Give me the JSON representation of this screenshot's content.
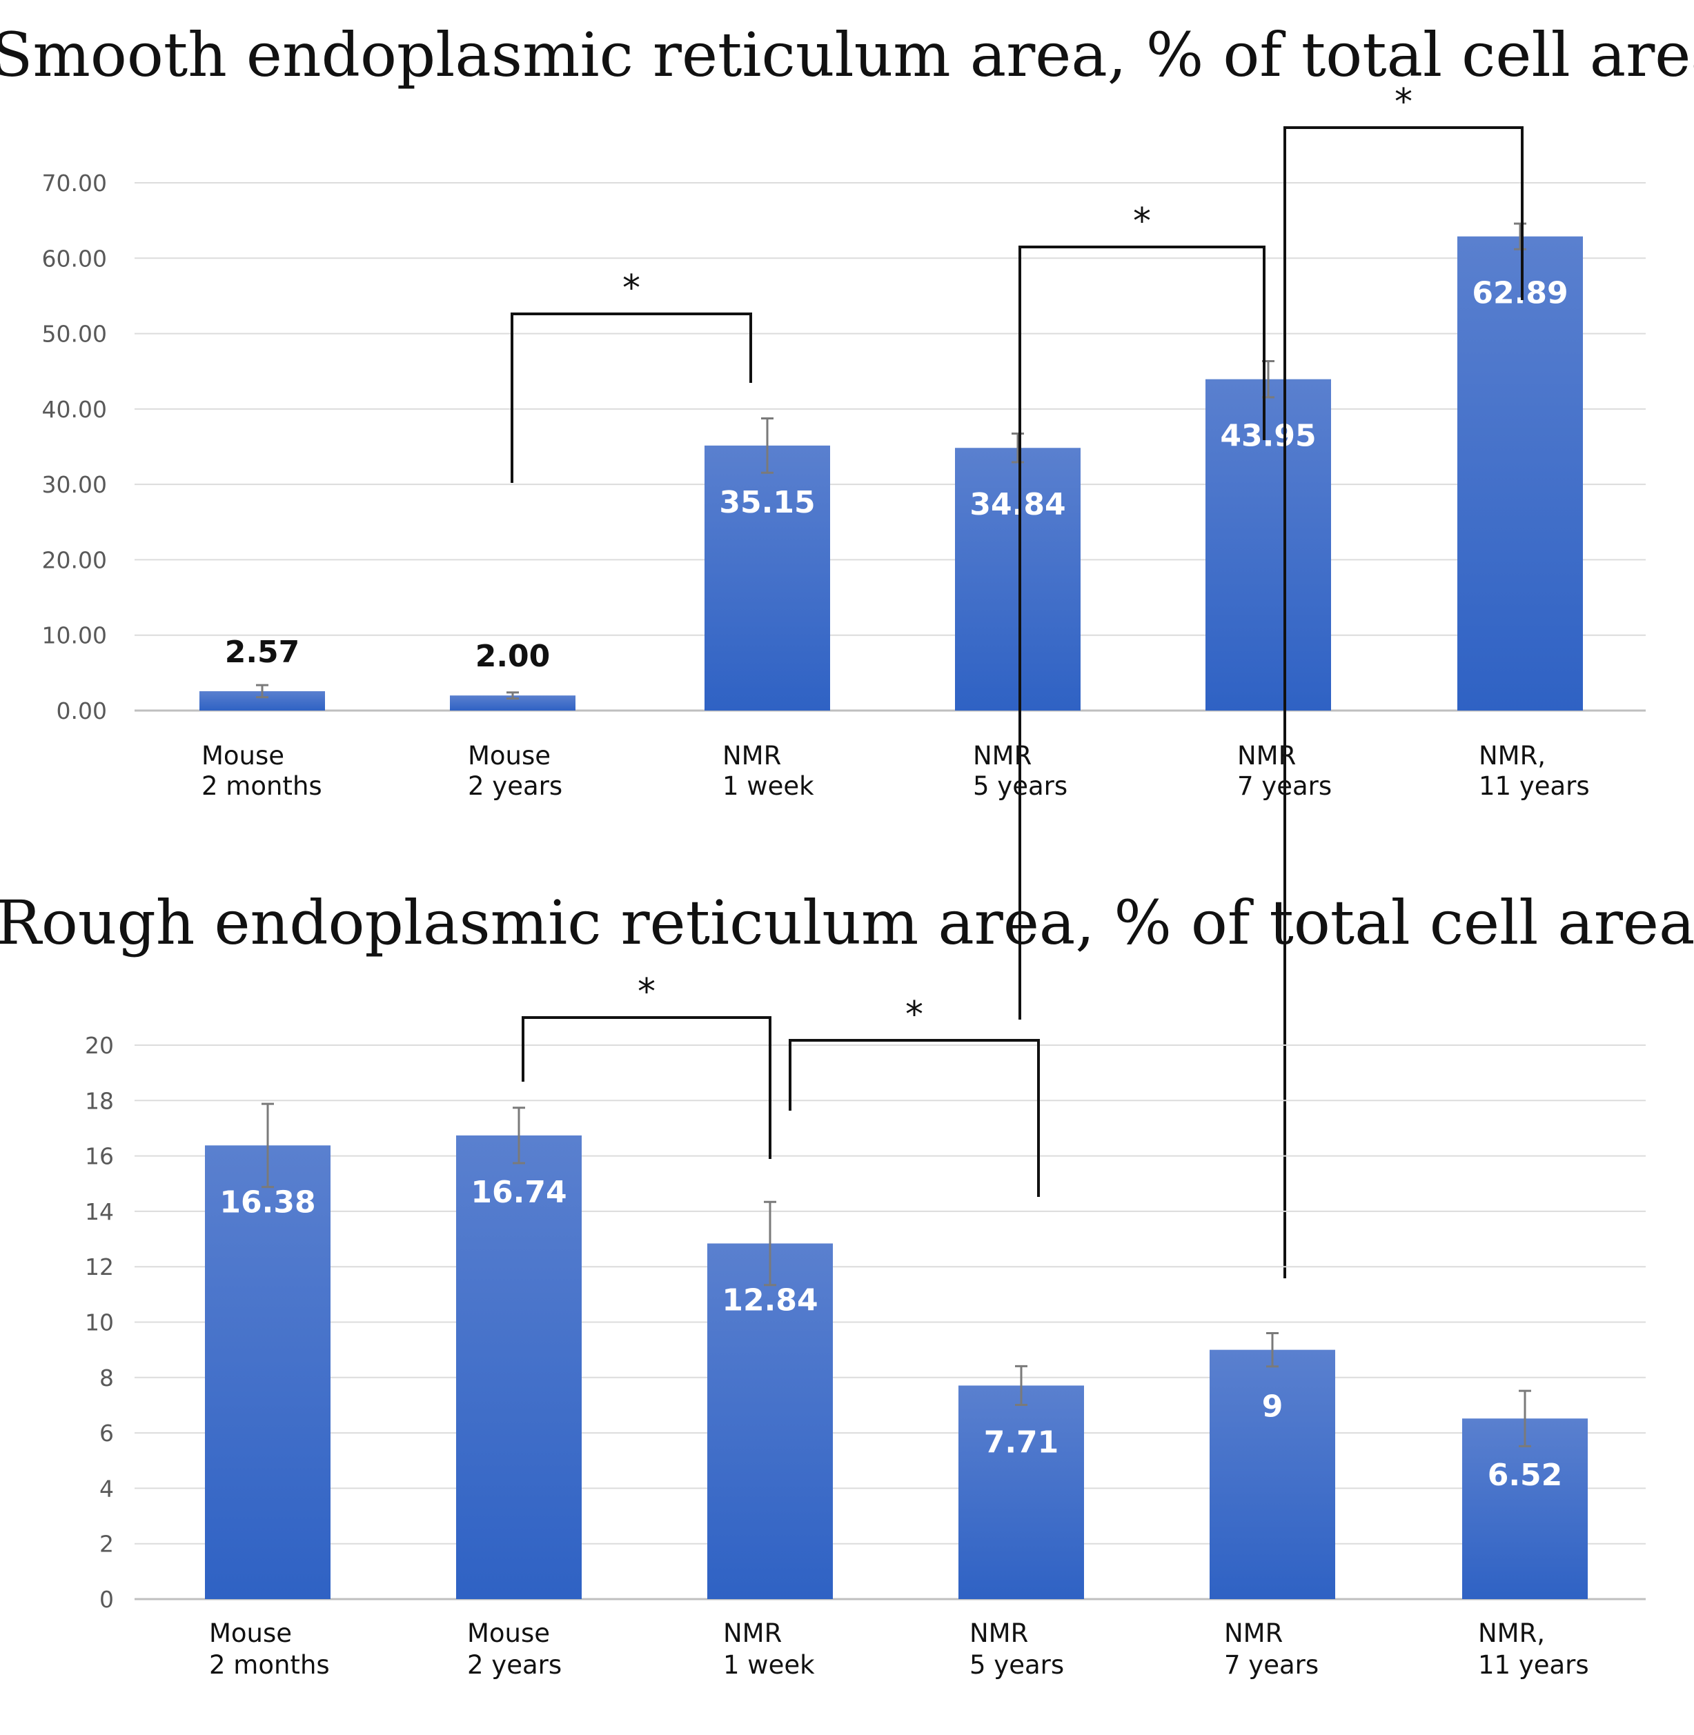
{
  "chart_data": [
    {
      "type": "bar",
      "title": "Smooth endoplasmic reticulum area, % of total cell area",
      "categories": [
        [
          "Mouse",
          "2 months"
        ],
        [
          "Mouse",
          "2 years"
        ],
        [
          "NMR",
          "1 week"
        ],
        [
          "NMR",
          "5 years"
        ],
        [
          "NMR",
          " 7 years"
        ],
        [
          "NMR,",
          "11 years"
        ]
      ],
      "values": [
        2.57,
        2.0,
        35.15,
        34.84,
        43.95,
        62.89
      ],
      "value_labels": [
        "2.57",
        "2.00",
        "35.15",
        "34.84",
        "43.95",
        "62.89"
      ],
      "errors": [
        0.8,
        0.4,
        3.6,
        1.9,
        2.4,
        1.7
      ],
      "yticks": [
        "0.00",
        "10.00",
        "20.00",
        "30.00",
        "40.00",
        "50.00",
        "60.00",
        "70.00"
      ],
      "ylim": [
        0,
        70
      ],
      "grid": true,
      "color": "#4472c4",
      "significance": [
        {
          "from": 1,
          "to": 2,
          "label": "*"
        },
        {
          "from": 3,
          "to": 4,
          "label": "*"
        },
        {
          "from": 4,
          "to": 5,
          "label": "*"
        }
      ]
    },
    {
      "type": "bar",
      "title": "Rough endoplasmic reticulum area, % of total cell area",
      "categories": [
        [
          "Mouse",
          "2 months"
        ],
        [
          "Mouse",
          "2 years"
        ],
        [
          "NMR",
          "1 week"
        ],
        [
          "NMR",
          "5 years"
        ],
        [
          "NMR",
          " 7 years"
        ],
        [
          "NMR,",
          "11 years"
        ]
      ],
      "values": [
        16.38,
        16.74,
        12.84,
        7.71,
        9,
        6.52
      ],
      "value_labels": [
        "16.38",
        "16.74",
        "12.84",
        "7.71",
        "9",
        "6.52"
      ],
      "errors": [
        1.5,
        1.0,
        1.5,
        0.7,
        0.6,
        1.0
      ],
      "yticks": [
        "0",
        "2",
        "4",
        "6",
        "8",
        "10",
        "12",
        "14",
        "16",
        "18",
        "20"
      ],
      "ylim": [
        0,
        20
      ],
      "grid": true,
      "color": "#4472c4",
      "significance": [
        {
          "from": 1,
          "to": 2,
          "label": "*"
        },
        {
          "from": 2,
          "to": 3,
          "label": "*"
        }
      ]
    }
  ]
}
